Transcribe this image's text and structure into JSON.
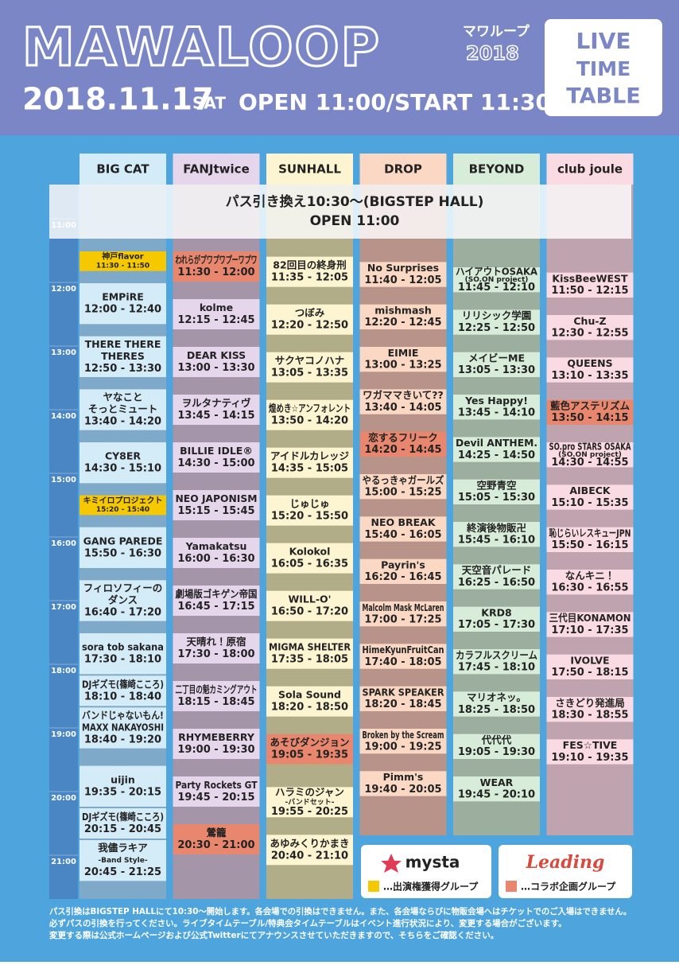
{
  "header": {
    "logo": "MAWALOOP",
    "logo_kana": "マワループ",
    "logo_year": "2018",
    "date": "2018.11.17",
    "weekday": "SAT",
    "open_start": "OPEN 11:00/START 11:30",
    "badge": [
      "LIVE",
      "TIME",
      "TABLE"
    ]
  },
  "pass_banner": [
    "パス引き換え10:30～(BIGSTEP HALL)",
    "OPEN 11:00"
  ],
  "time_labels": [
    "11:00",
    "12:00",
    "13:00",
    "14:00",
    "15:00",
    "16:00",
    "17:00",
    "18:00",
    "19:00",
    "20:00",
    "21:00"
  ],
  "stages": [
    {
      "name": "BIG CAT",
      "header_color": "#d4ebf8",
      "track_color": "#7fa9c9",
      "block_color": "#d4ebf8",
      "events": [
        {
          "lines": [
            "神戸flavor"
          ],
          "time": "11:30 - 11:50",
          "color": "#f5c800"
        },
        {
          "lines": [
            "EMPiRE"
          ],
          "time": "12:00 - 12:40"
        },
        {
          "lines": [
            "THERE THERE",
            "THERES"
          ],
          "time": "12:50 - 13:30"
        },
        {
          "lines": [
            "ヤなこと",
            "そっとミュート"
          ],
          "time": "13:40 - 14:20"
        },
        {
          "lines": [
            "CY8ER"
          ],
          "time": "14:30 - 15:10"
        },
        {
          "lines": [
            "キミイロプロジェクト"
          ],
          "time": "15:20 - 15:40",
          "color": "#f5c800"
        },
        {
          "lines": [
            "GANG PAREDE"
          ],
          "time": "15:50 - 16:30"
        },
        {
          "lines": [
            "フィロソフィーの",
            "ダンス"
          ],
          "time": "16:40 - 17:20"
        },
        {
          "lines": [
            "sora tob sakana"
          ],
          "time": "17:30 - 18:10"
        },
        {
          "lines": [
            "DJギズモ(篠崎こころ)"
          ],
          "time": "18:10 - 18:40"
        },
        {
          "lines": [
            "バンドじゃないもん!",
            "MAXX NAKAYOSHI"
          ],
          "time": "18:40 - 19:20"
        },
        {
          "lines": [
            "uijin"
          ],
          "time": "19:35 - 20:15"
        },
        {
          "lines": [
            "DJギズモ(篠崎こころ)"
          ],
          "time": "20:15 - 20:45"
        },
        {
          "lines": [
            "我儘ラキア",
            "-Band Style-"
          ],
          "time": "20:45 - 21:25"
        }
      ]
    },
    {
      "name": "FANJtwice",
      "header_color": "#e6d6ec",
      "track_color": "#a496a8",
      "block_color": "#e6d6ec",
      "events": [
        {
          "lines": [
            "われらがプワプワプーワプワ"
          ],
          "time": "11:30 - 12:00",
          "color": "#e8876e"
        },
        {
          "lines": [
            "kolme"
          ],
          "time": "12:15 - 12:45"
        },
        {
          "lines": [
            "DEAR KISS"
          ],
          "time": "13:00 - 13:30"
        },
        {
          "lines": [
            "ヲルタナティヴ"
          ],
          "time": "13:45 - 14:15"
        },
        {
          "lines": [
            "BILLIE IDLE®"
          ],
          "time": "14:30 - 15:00"
        },
        {
          "lines": [
            "NEO JAPONISM"
          ],
          "time": "15:15 - 15:45"
        },
        {
          "lines": [
            "Yamakatsu"
          ],
          "time": "16:00 - 16:30"
        },
        {
          "lines": [
            "劇場版ゴキゲン帝国"
          ],
          "time": "16:45 - 17:15"
        },
        {
          "lines": [
            "天晴れ！原宿"
          ],
          "time": "17:30 - 18:00"
        },
        {
          "lines": [
            "二丁目の魁カミングアウト"
          ],
          "time": "18:15 - 18:45"
        },
        {
          "lines": [
            "RHYMEBERRY"
          ],
          "time": "19:00 - 19:30"
        },
        {
          "lines": [
            "Party Rockets GT"
          ],
          "time": "19:45 - 20:15"
        },
        {
          "lines": [
            "鶯籠"
          ],
          "time": "20:30 - 21:00",
          "color": "#e8876e"
        }
      ]
    },
    {
      "name": "SUNHALL",
      "header_color": "#fdf5d2",
      "track_color": "#b1ad88",
      "block_color": "#fdf5d2",
      "events": [
        {
          "lines": [
            "82回目の終身刑"
          ],
          "time": "11:35 - 12:05"
        },
        {
          "lines": [
            "つぼみ"
          ],
          "time": "12:20 - 12:50"
        },
        {
          "lines": [
            "サクヤコノハナ"
          ],
          "time": "13:05 - 13:35"
        },
        {
          "lines": [
            "煌めき☆アンフォレント"
          ],
          "time": "13:50 - 14:20"
        },
        {
          "lines": [
            "アイドルカレッジ"
          ],
          "time": "14:35 - 15:05"
        },
        {
          "lines": [
            "じゅじゅ"
          ],
          "time": "15:20 - 15:50"
        },
        {
          "lines": [
            "Kolokol"
          ],
          "time": "16:05 - 16:35"
        },
        {
          "lines": [
            "WILL-O'"
          ],
          "time": "16:50 - 17:20"
        },
        {
          "lines": [
            "MIGMA SHELTER"
          ],
          "time": "17:35 - 18:05"
        },
        {
          "lines": [
            "Sola Sound"
          ],
          "time": "18:20 - 18:50"
        },
        {
          "lines": [
            "あそびダンジョン"
          ],
          "time": "19:05 - 19:35",
          "color": "#e8876e"
        },
        {
          "lines": [
            "ハラミのジャン",
            "-バンドセット-"
          ],
          "time": "19:55 - 20:25"
        },
        {
          "lines": [
            "あゆみくりかまき"
          ],
          "time": "20:40 - 21:10"
        }
      ]
    },
    {
      "name": "DROP",
      "header_color": "#fbd8c4",
      "track_color": "#b7938a",
      "block_color": "#fbd8c4",
      "events": [
        {
          "lines": [
            "No Surprises"
          ],
          "time": "11:40 - 12:05"
        },
        {
          "lines": [
            "mishmash"
          ],
          "time": "12:20 - 12:45"
        },
        {
          "lines": [
            "EIMIE"
          ],
          "time": "13:00 - 13:25"
        },
        {
          "lines": [
            "ワガママきいて??"
          ],
          "time": "13:40 - 14:05"
        },
        {
          "lines": [
            "恋するフリーク"
          ],
          "time": "14:20 - 14:45",
          "color": "#e8876e"
        },
        {
          "lines": [
            "やるっきゃガールズ"
          ],
          "time": "15:00 - 15:25"
        },
        {
          "lines": [
            "NEO BREAK"
          ],
          "time": "15:40 - 16:05"
        },
        {
          "lines": [
            "Payrin's"
          ],
          "time": "16:20 - 16:45"
        },
        {
          "lines": [
            "Malcolm Mask McLaren"
          ],
          "time": "17:00 - 17:25"
        },
        {
          "lines": [
            "HimeKyunFruitCan"
          ],
          "time": "17:40 - 18:05"
        },
        {
          "lines": [
            "SPARK SPEAKER"
          ],
          "time": "18:20 - 18:45"
        },
        {
          "lines": [
            "Broken by the Scream"
          ],
          "time": "19:00 - 19:25"
        },
        {
          "lines": [
            "Pimm's"
          ],
          "time": "19:40 - 20:05"
        }
      ]
    },
    {
      "name": "BEYOND",
      "header_color": "#d7ecd9",
      "track_color": "#9cae9e",
      "block_color": "#d7ecd9",
      "events": [
        {
          "lines": [
            "ハイアウトOSAKA",
            "(SO.ON project)"
          ],
          "time": "11:45 - 12:10"
        },
        {
          "lines": [
            "リリシック学園"
          ],
          "time": "12:25 - 12:50"
        },
        {
          "lines": [
            "メイビーME"
          ],
          "time": "13:05 - 13:30"
        },
        {
          "lines": [
            "Yes Happy!"
          ],
          "time": "13:45 - 14:10"
        },
        {
          "lines": [
            "Devil ANTHEM."
          ],
          "time": "14:25 - 14:50"
        },
        {
          "lines": [
            "空野青空"
          ],
          "time": "15:05 - 15:30"
        },
        {
          "lines": [
            "終演後物販卍"
          ],
          "time": "15:45 - 16:10"
        },
        {
          "lines": [
            "天空音パレード"
          ],
          "time": "16:25 - 16:50"
        },
        {
          "lines": [
            "KRD8"
          ],
          "time": "17:05 - 17:30"
        },
        {
          "lines": [
            "カラフルスクリーム"
          ],
          "time": "17:45 - 18:10"
        },
        {
          "lines": [
            "マリオネッ。"
          ],
          "time": "18:25 - 18:50"
        },
        {
          "lines": [
            "代代代"
          ],
          "time": "19:05 - 19:30"
        },
        {
          "lines": [
            "WEAR"
          ],
          "time": "19:45 - 20:10"
        }
      ]
    },
    {
      "name": "club joule",
      "header_color": "#fbdbe3",
      "track_color": "#bfa3ae",
      "block_color": "#fbdbe3",
      "events": [
        {
          "lines": [
            "KissBeeWEST"
          ],
          "time": "11:50 - 12:15"
        },
        {
          "lines": [
            "Chu-Z"
          ],
          "time": "12:30 - 12:55"
        },
        {
          "lines": [
            "QUEENS"
          ],
          "time": "13:10 - 13:35"
        },
        {
          "lines": [
            "藍色アステリズム"
          ],
          "time": "13:50 - 14:15",
          "color": "#e8876e"
        },
        {
          "lines": [
            "SO.pro STARS OSAKA",
            "(SO.ON project)"
          ],
          "time": "14:30 - 14:55"
        },
        {
          "lines": [
            "AIBECK"
          ],
          "time": "15:10 - 15:35"
        },
        {
          "lines": [
            "恥じらいレスキューJPN"
          ],
          "time": "15:50 - 16:15"
        },
        {
          "lines": [
            "なんキニ！"
          ],
          "time": "16:30 - 16:55"
        },
        {
          "lines": [
            "三代目KONAMON"
          ],
          "time": "17:10 - 17:35"
        },
        {
          "lines": [
            "IVOLVE"
          ],
          "time": "17:50 - 18:15"
        },
        {
          "lines": [
            "さきどり発進局"
          ],
          "time": "18:30 - 18:55"
        },
        {
          "lines": [
            "FES☆TIVE"
          ],
          "time": "19:10 - 19:35"
        }
      ]
    }
  ],
  "legend": [
    {
      "brand": "mysta",
      "color": "#f5c800",
      "text": "…出演権獲得グループ"
    },
    {
      "brand": "Leading",
      "color": "#e8876e",
      "text": "…コラボ企画グループ"
    }
  ],
  "notes": [
    "パス引換はBIGSTEP HALLにて10:30～開始します。各会場での引換はできません。また、各会場ならびに物販会場へはチケットでのご入場はできません。",
    "必ずパスの引換を行ってください。ライブタイムテーブル/特典会タイムテーブルはイベント進行状況により、変更する場合がございます。",
    "変更する際は公式ホームページおよび公式Twitterにてアナウンスさせていただきますので、そちらをご確認ください。"
  ]
}
